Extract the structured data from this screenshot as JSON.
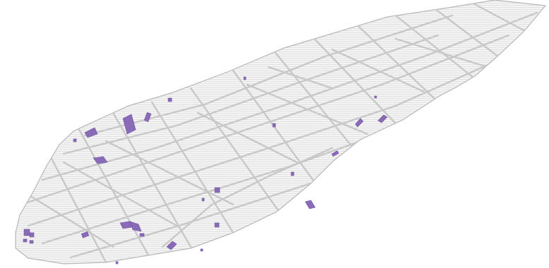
{
  "map": {
    "colors": {
      "background": "#ffffff",
      "area_fill": "#f4f4f4",
      "hatch": "#d9d9d9",
      "street": "#c7c7c7",
      "outline": "#b7b7b7",
      "highlight": "#8a6bb8",
      "highlight_light": "#c9b7e3"
    }
  }
}
